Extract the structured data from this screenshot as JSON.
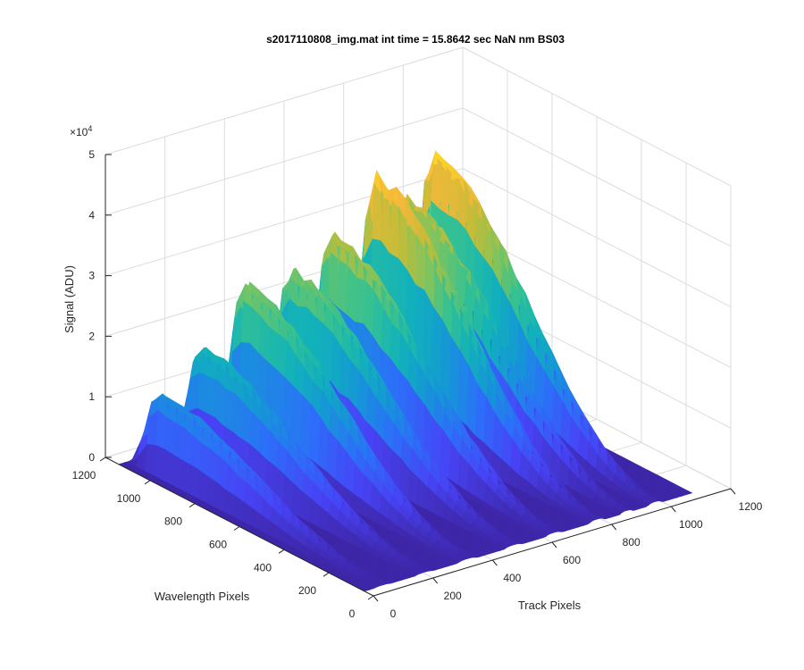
{
  "chart_data": {
    "type": "surface",
    "title": "s2017110808_img.mat int time = 15.8642 sec  NaN nm BS03",
    "xlabel": "Track Pixels",
    "ylabel": "Wavelength Pixels",
    "zlabel": "Signal (ADU)",
    "z_exponent_label": "×10",
    "z_exponent_power": "4",
    "xlim": [
      0,
      1200
    ],
    "ylim": [
      0,
      1200
    ],
    "zlim": [
      0,
      50000
    ],
    "x_ticks": [
      "0",
      "200",
      "400",
      "600",
      "800",
      "1000",
      "1200"
    ],
    "y_ticks": [
      "0",
      "200",
      "400",
      "600",
      "800",
      "1000",
      "1200"
    ],
    "z_ticks": [
      "0",
      "1",
      "2",
      "3",
      "4",
      "5"
    ],
    "grid": true,
    "colormap": [
      "#3e26a8",
      "#4743f5",
      "#2c6ff9",
      "#1597d6",
      "#12b2ba",
      "#35c192",
      "#81c45c",
      "#c4bc38",
      "#f6b83a",
      "#f9e31f"
    ],
    "tracks": [
      {
        "x_center": 60,
        "width": 55,
        "peak": 13000
      },
      {
        "x_center": 200,
        "width": 60,
        "peak": 18500
      },
      {
        "x_center": 345,
        "width": 65,
        "peak": 27000
      },
      {
        "x_center": 500,
        "width": 60,
        "peak": 27000
      },
      {
        "x_center": 635,
        "width": 55,
        "peak": 31000
      },
      {
        "x_center": 780,
        "width": 55,
        "peak": 38500
      },
      {
        "x_center": 880,
        "width": 45,
        "peak": 34000
      },
      {
        "x_center": 975,
        "width": 50,
        "peak": 39500
      }
    ],
    "spectrum_profile": {
      "wavelength": [
        1050,
        950,
        850,
        750,
        650,
        550,
        450,
        350,
        250,
        150,
        50
      ],
      "relative_signal": [
        1.0,
        0.97,
        0.9,
        0.78,
        0.63,
        0.47,
        0.32,
        0.2,
        0.1,
        0.04,
        0.01
      ]
    }
  }
}
